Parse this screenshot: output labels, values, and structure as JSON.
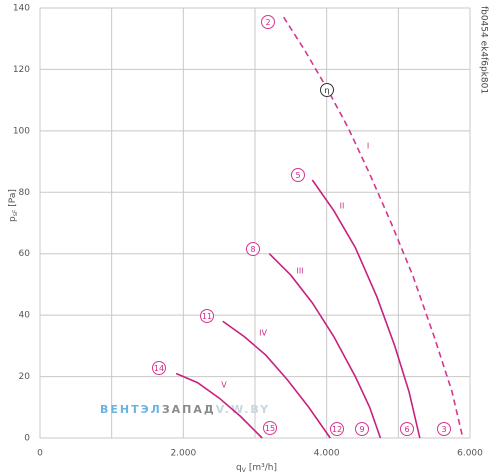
{
  "chart_data": {
    "type": "line",
    "x_label": "q",
    "x_label_sub": "V",
    "x_label_unit": "[m³/h]",
    "y_label": "p",
    "y_label_sub": "sF",
    "y_label_unit": "[Pa]",
    "code": "fb0454 ek4f6pk801",
    "watermark": [
      "ВЕНТЭЛ",
      "ЗАПАД",
      "V.W.BY"
    ],
    "xlim": [
      0,
      6000
    ],
    "ylim": [
      0,
      140
    ],
    "xticks": [
      0,
      {
        "value": 2000,
        "label": "2.000"
      },
      {
        "value": 4000,
        "label": "4.000"
      },
      {
        "value": 6000,
        "label": "6.000"
      }
    ],
    "x_minor_ticks": [
      1000,
      3000,
      5000
    ],
    "yticks": [
      0,
      20,
      40,
      60,
      80,
      100,
      120,
      140
    ],
    "grid": true,
    "series": [
      {
        "name": "I",
        "color": "#d6368f",
        "dashed": true,
        "x": [
          3400,
          3700,
          4000,
          4300,
          4600,
          4900,
          5200,
          5500,
          5750,
          5900
        ],
        "values": [
          137,
          126,
          114,
          101,
          86,
          70,
          53,
          33,
          15,
          0
        ]
      },
      {
        "name": "II",
        "color": "#c8207e",
        "dashed": false,
        "x": [
          3800,
          4100,
          4400,
          4700,
          4950,
          5150,
          5300
        ],
        "values": [
          84,
          74,
          62,
          46,
          30,
          15,
          0
        ]
      },
      {
        "name": "III",
        "color": "#c8207e",
        "dashed": false,
        "x": [
          3200,
          3500,
          3800,
          4100,
          4400,
          4600,
          4750
        ],
        "values": [
          60,
          53,
          44,
          33,
          20,
          10,
          0
        ]
      },
      {
        "name": "IV",
        "color": "#c8207e",
        "dashed": false,
        "x": [
          2550,
          2850,
          3150,
          3450,
          3750,
          4050
        ],
        "values": [
          38,
          33,
          27,
          19,
          10,
          0
        ]
      },
      {
        "name": "V",
        "color": "#c8207e",
        "dashed": false,
        "x": [
          1900,
          2200,
          2500,
          2800,
          3100
        ],
        "values": [
          21,
          18,
          13,
          7,
          0
        ]
      }
    ],
    "annotations": [
      "2",
      "5",
      "8",
      "11",
      "14",
      "3",
      "6",
      "9",
      "12",
      "15",
      "η"
    ]
  }
}
